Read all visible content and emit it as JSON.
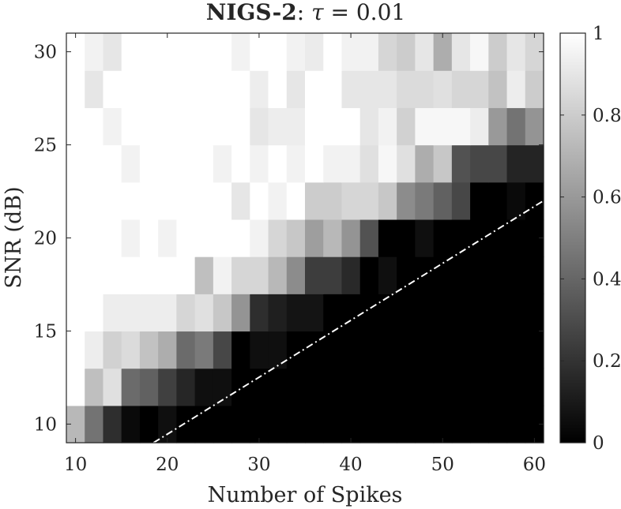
{
  "chart_data": {
    "type": "heatmap",
    "title": {
      "main": "NIGS-2",
      "suffix": ": ",
      "param": "τ",
      "eq": " = 0.01"
    },
    "xlabel": "Number of Spikes",
    "ylabel": "SNR (dB)",
    "xlim": [
      9,
      61
    ],
    "ylim": [
      9,
      31
    ],
    "x": [
      10,
      12,
      14,
      16,
      18,
      20,
      22,
      24,
      26,
      28,
      30,
      32,
      34,
      36,
      38,
      40,
      42,
      44,
      46,
      48,
      50,
      52,
      54,
      56,
      58,
      60
    ],
    "y": [
      10,
      12,
      14,
      16,
      18,
      20,
      22,
      24,
      26,
      28,
      30
    ],
    "x_ticks": [
      10,
      20,
      30,
      40,
      50,
      60
    ],
    "y_ticks": [
      10,
      15,
      20,
      25,
      30
    ],
    "colorbar": {
      "range": [
        0,
        1
      ],
      "ticks": [
        0,
        0.2,
        0.4,
        0.6,
        0.8,
        1
      ],
      "tick_labels": [
        "0",
        "0.2",
        "0.4",
        "0.6",
        "0.8",
        "1"
      ],
      "colormap": "gray"
    },
    "z": [
      [
        0.72,
        0.45,
        0.18,
        0.04,
        0.0,
        0.06,
        0.0,
        0.0,
        0.0,
        0.0,
        0.0,
        0.0,
        0.0,
        0.0,
        0.0,
        0.0,
        0.0,
        0.0,
        0.0,
        0.0,
        0.0,
        0.0,
        0.0,
        0.0,
        0.0,
        0.0
      ],
      [
        1.0,
        0.75,
        0.88,
        0.42,
        0.38,
        0.25,
        0.15,
        0.06,
        0.06,
        0.0,
        0.0,
        0.0,
        0.0,
        0.0,
        0.0,
        0.0,
        0.0,
        0.0,
        0.0,
        0.0,
        0.0,
        0.0,
        0.0,
        0.0,
        0.0,
        0.0
      ],
      [
        1.0,
        0.93,
        0.82,
        0.86,
        0.76,
        0.68,
        0.42,
        0.48,
        0.28,
        0.0,
        0.06,
        0.06,
        0.0,
        0.0,
        0.0,
        0.0,
        0.0,
        0.0,
        0.0,
        0.0,
        0.0,
        0.0,
        0.0,
        0.0,
        0.0,
        0.0
      ],
      [
        1.0,
        1.0,
        0.93,
        0.93,
        0.93,
        0.93,
        0.84,
        0.88,
        0.78,
        0.58,
        0.18,
        0.12,
        0.08,
        0.08,
        0.0,
        0.0,
        0.0,
        0.0,
        0.0,
        0.0,
        0.0,
        0.0,
        0.0,
        0.0,
        0.0,
        0.0
      ],
      [
        1.0,
        1.0,
        1.0,
        1.0,
        1.0,
        1.0,
        1.0,
        0.75,
        0.95,
        0.84,
        0.84,
        0.72,
        0.55,
        0.24,
        0.24,
        0.16,
        0.0,
        0.06,
        0.0,
        0.0,
        0.0,
        0.0,
        0.0,
        0.0,
        0.0,
        0.0
      ],
      [
        1.0,
        1.0,
        1.0,
        0.95,
        1.0,
        0.95,
        1.0,
        1.0,
        1.0,
        1.0,
        0.95,
        0.84,
        0.78,
        0.62,
        0.72,
        0.58,
        0.32,
        0.0,
        0.0,
        0.06,
        0.0,
        0.0,
        0.0,
        0.0,
        0.0,
        0.0
      ],
      [
        1.0,
        1.0,
        1.0,
        1.0,
        1.0,
        1.0,
        1.0,
        1.0,
        1.0,
        0.9,
        1.0,
        0.95,
        1.0,
        0.8,
        0.8,
        0.84,
        0.84,
        0.78,
        0.55,
        0.48,
        0.38,
        0.28,
        0.0,
        0.0,
        0.04,
        0.0
      ],
      [
        1.0,
        1.0,
        1.0,
        0.95,
        1.0,
        1.0,
        1.0,
        1.0,
        0.95,
        1.0,
        0.95,
        1.0,
        0.95,
        1.0,
        0.95,
        0.95,
        0.88,
        0.97,
        0.88,
        0.68,
        0.78,
        0.32,
        0.28,
        0.28,
        0.14,
        0.14
      ],
      [
        1.0,
        1.0,
        0.95,
        1.0,
        1.0,
        1.0,
        1.0,
        1.0,
        1.0,
        1.0,
        0.9,
        0.93,
        0.93,
        1.0,
        1.0,
        1.0,
        0.9,
        0.95,
        0.82,
        0.97,
        0.97,
        0.97,
        0.93,
        0.6,
        0.45,
        0.58
      ],
      [
        1.0,
        0.9,
        1.0,
        1.0,
        1.0,
        1.0,
        1.0,
        1.0,
        1.0,
        1.0,
        0.93,
        1.0,
        0.9,
        1.0,
        1.0,
        0.9,
        0.9,
        0.9,
        0.86,
        0.86,
        0.88,
        0.84,
        0.84,
        0.76,
        0.93,
        0.8
      ],
      [
        1.0,
        0.95,
        0.9,
        1.0,
        1.0,
        1.0,
        1.0,
        1.0,
        1.0,
        0.95,
        1.0,
        1.0,
        0.95,
        0.92,
        1.0,
        0.95,
        0.95,
        0.84,
        0.8,
        0.9,
        0.68,
        0.9,
        0.97,
        0.8,
        0.9,
        0.84
      ]
    ],
    "reference_line": {
      "style": "dash-dot",
      "color": "#ffffff",
      "points": [
        [
          18.5,
          9
        ],
        [
          61,
          22
        ]
      ]
    }
  }
}
